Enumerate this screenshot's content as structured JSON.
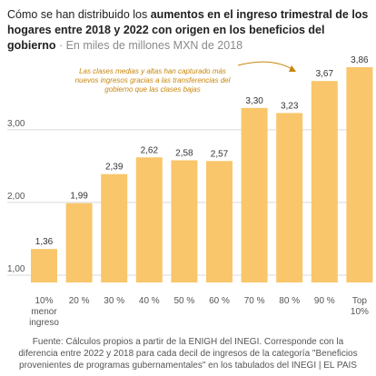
{
  "title": {
    "part1": "Cómo se han distribuido los ",
    "part2": "aumentos en el ingreso trimestral de los hogares entre 2018 y 2022 con origen en los beneficios del gobierno",
    "part3": " · En miles de millones MXN de 2018"
  },
  "source": "Fuente: Cálculos propios a partir de la ENIGH del INEGI. Corresponde con la diferencia entre 2022 y 2018 para cada decil de ingresos de la categoría \"Beneficios provenientes de programas gubernamentales\" en los tabulados del INEGI | EL PAIS",
  "colors": {
    "bar": "#f9c66b",
    "grid": "#d9d9d9",
    "annotation": "#c8860b"
  },
  "chart_data": {
    "type": "bar",
    "categories": [
      [
        "10%",
        "menor",
        "ingreso"
      ],
      [
        "20 %"
      ],
      [
        "30 %"
      ],
      [
        "40 %"
      ],
      [
        "50 %"
      ],
      [
        "60 %"
      ],
      [
        "70 %"
      ],
      [
        "80 %"
      ],
      [
        "90 %"
      ],
      [
        "Top",
        "10%"
      ]
    ],
    "values": [
      1.36,
      1.99,
      2.39,
      2.62,
      2.58,
      2.57,
      3.3,
      3.23,
      3.67,
      3.86
    ],
    "value_labels": [
      "1,36",
      "1,99",
      "2,39",
      "2,62",
      "2,58",
      "2,57",
      "3,30",
      "3,23",
      "3,67",
      "3,86"
    ],
    "yticks": [
      1,
      2,
      3
    ],
    "ytick_labels": [
      "1,00",
      "2,00",
      "3,00"
    ],
    "ylim": [
      0.9,
      3.86
    ],
    "grid": true,
    "annotation": {
      "lines": [
        "Las clases medias y altas han capturado más",
        "nuevos ingresos gracias a las transferencias del",
        "gobierno que las clases bajas"
      ]
    }
  }
}
